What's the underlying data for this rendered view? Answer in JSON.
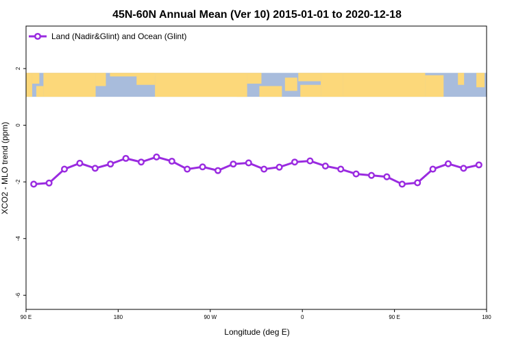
{
  "chart_data": {
    "type": "line",
    "title": "45N-60N Annual Mean (Ver 10)   2015-01-01 to 2020-12-18",
    "xlabel": "Longitude (deg E)",
    "ylabel": "XCO2 - MLO trend (ppm)",
    "xlim": [
      90,
      540
    ],
    "ylim": [
      -6.5,
      3.5
    ],
    "x_ticks": [
      {
        "value": 90,
        "label": "90 E"
      },
      {
        "value": 180,
        "label": "180"
      },
      {
        "value": 270,
        "label": "90 W"
      },
      {
        "value": 360,
        "label": "0"
      },
      {
        "value": 450,
        "label": "90 E"
      },
      {
        "value": 540,
        "label": "180"
      }
    ],
    "y_ticks": [
      {
        "value": 2,
        "label": "2"
      },
      {
        "value": 0,
        "label": "0"
      },
      {
        "value": -2,
        "label": "-2"
      },
      {
        "value": -4,
        "label": "-4"
      },
      {
        "value": -6,
        "label": "-6"
      }
    ],
    "map_band": {
      "ymin": 1.0,
      "ymax": 1.85,
      "ocean_color": "#a8bcdc",
      "land_color": "#fcd87a"
    },
    "legend": {
      "position": "top-left"
    },
    "series": [
      {
        "name": "Land (Nadir&Glint) and Ocean (Glint)",
        "color": "#9a2be0",
        "x": [
          97.5,
          112.5,
          127.5,
          142.5,
          157.5,
          172.5,
          187.5,
          202.5,
          217.5,
          232.5,
          247.5,
          262.5,
          277.5,
          292.5,
          307.5,
          322.5,
          337.5,
          352.5,
          367.5,
          382.5,
          397.5,
          412.5,
          427.5,
          442.5,
          457.5,
          472.5,
          487.5,
          502.5,
          517.5,
          532.5
        ],
        "values": [
          -2.08,
          -2.04,
          -1.55,
          -1.34,
          -1.52,
          -1.37,
          -1.17,
          -1.3,
          -1.12,
          -1.27,
          -1.55,
          -1.47,
          -1.6,
          -1.37,
          -1.33,
          -1.55,
          -1.48,
          -1.3,
          -1.26,
          -1.44,
          -1.55,
          -1.72,
          -1.77,
          -1.82,
          -2.08,
          -2.03,
          -1.55,
          -1.36,
          -1.52,
          -1.4
        ]
      }
    ]
  }
}
